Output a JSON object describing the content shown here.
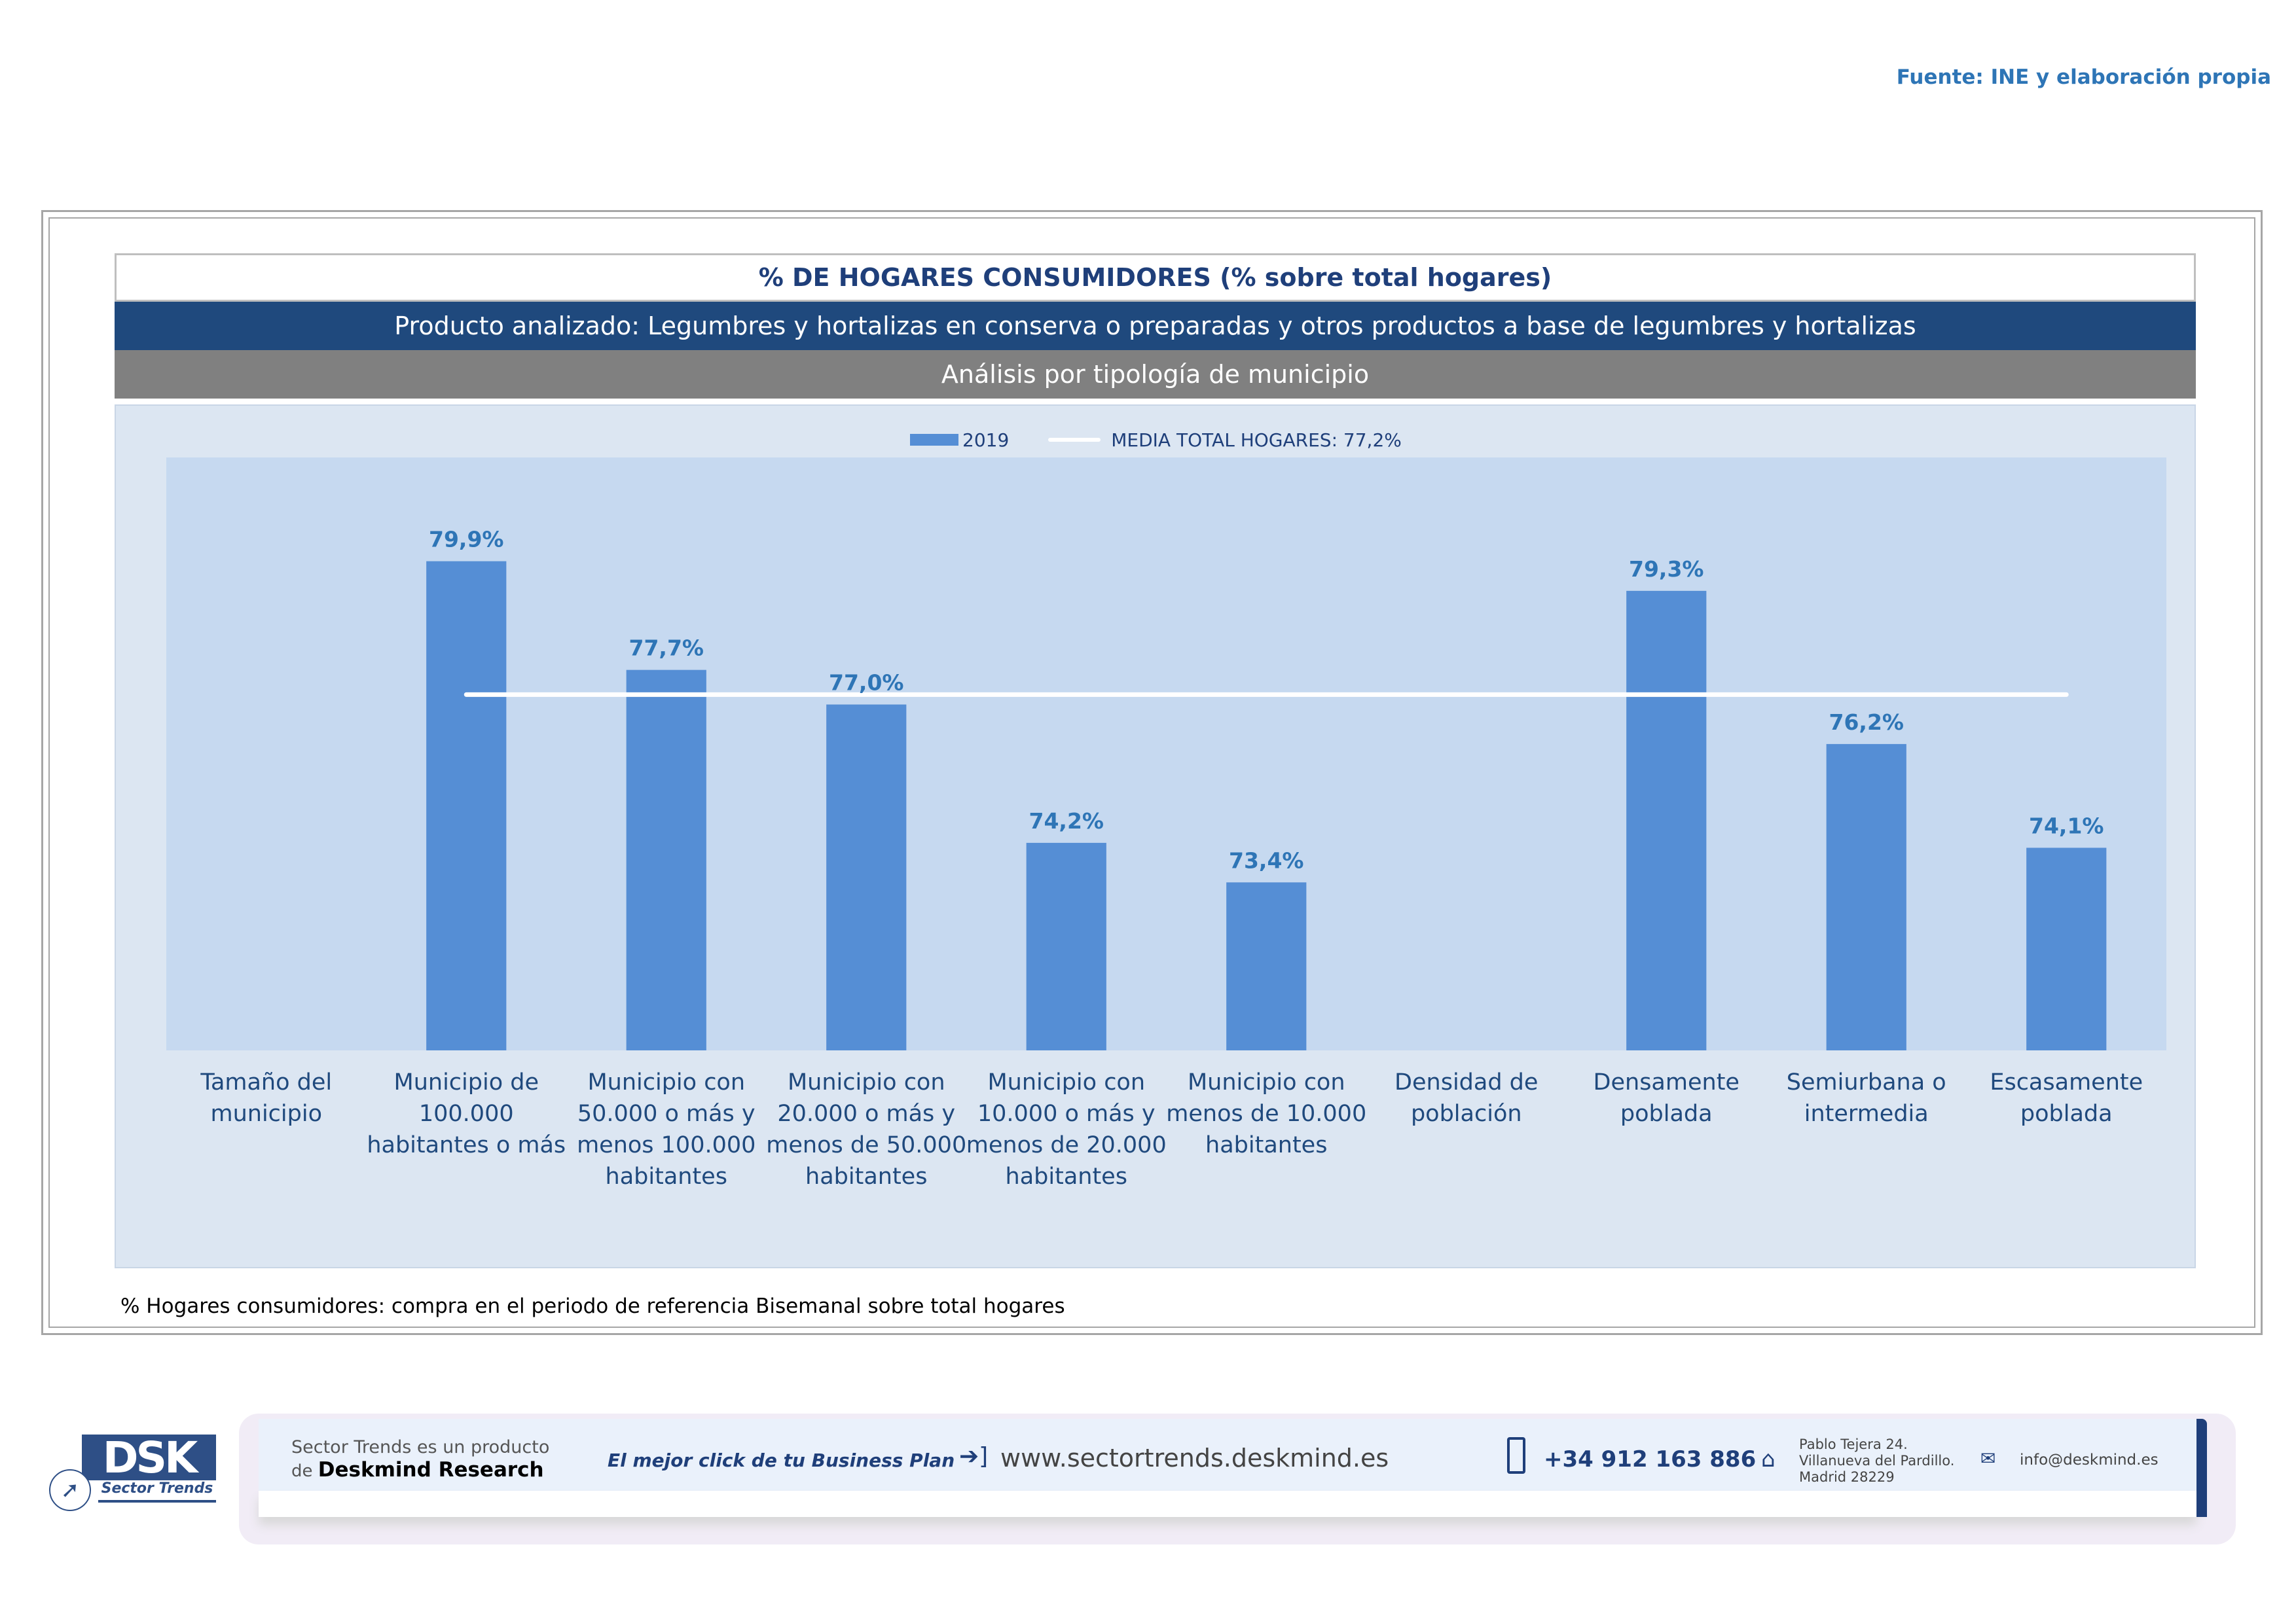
{
  "source": "Fuente: INE y elaboración propia",
  "header": {
    "title": "% DE HOGARES CONSUMIDORES (% sobre total hogares)",
    "product": "Producto analizado: Legumbres y hortalizas en conserva o preparadas y otros productos a base de legumbres y hortalizas",
    "analysis": "Análisis por tipología de municipio"
  },
  "chart_data": {
    "type": "bar",
    "title": "% DE HOGARES CONSUMIDORES (% sobre total hogares)",
    "categories": [
      "Tamaño del\nmunicipio",
      "Municipio de\n100.000\nhabitantes o más",
      "Municipio con\n50.000 o más y\nmenos 100.000\nhabitantes",
      "Municipio con\n20.000 o más y\nmenos de 50.000\nhabitantes",
      "Municipio con\n10.000 o más y\nmenos de 20.000\nhabitantes",
      "Municipio con\nmenos de 10.000\nhabitantes",
      "Densidad de\npoblación",
      "Densamente\npoblada",
      "Semiurbana o\nintermedia",
      "Escasamente\npoblada"
    ],
    "series": [
      {
        "name": "2019",
        "values": [
          null,
          79.9,
          77.7,
          77.0,
          74.2,
          73.4,
          null,
          79.3,
          76.2,
          74.1
        ]
      }
    ],
    "data_labels": [
      "",
      "79,9%",
      "77,7%",
      "77,0%",
      "74,2%",
      "73,4%",
      "",
      "79,3%",
      "76,2%",
      "74,1%"
    ],
    "reference_line": {
      "name": "MEDIA TOTAL  HOGARES:  77,2%",
      "value": 77.2
    },
    "legend": {
      "series_label": "2019",
      "line_label": "MEDIA TOTAL  HOGARES:  77,2%",
      "placement": "top-center"
    },
    "ylim": [
      70,
      82
    ],
    "xlabel": "",
    "ylabel": "",
    "grid": false,
    "colors": {
      "bar": "#558ed5",
      "line": "#ffffff",
      "label": "#2e75b6",
      "plot_bg": "#c6d9f0"
    }
  },
  "footnote": "% Hogares consumidores: compra en el periodo de referencia Bisemanal sobre total hogares",
  "footer": {
    "logo_text": "DSK",
    "logo_sub": "Sector Trends",
    "product_line1": "Sector Trends es un producto",
    "product_line2_prefix": "de ",
    "product_line2_brand": "Deskmind Research",
    "slogan": "El mejor click de tu Business Plan",
    "website": "www.sectortrends.deskmind.es",
    "phone": "+34 912 163 886",
    "address_line1": "Pablo Tejera 24.",
    "address_line2": "Villanueva del Pardillo.",
    "address_line3": "Madrid 28229",
    "email": "info@deskmind.es"
  }
}
